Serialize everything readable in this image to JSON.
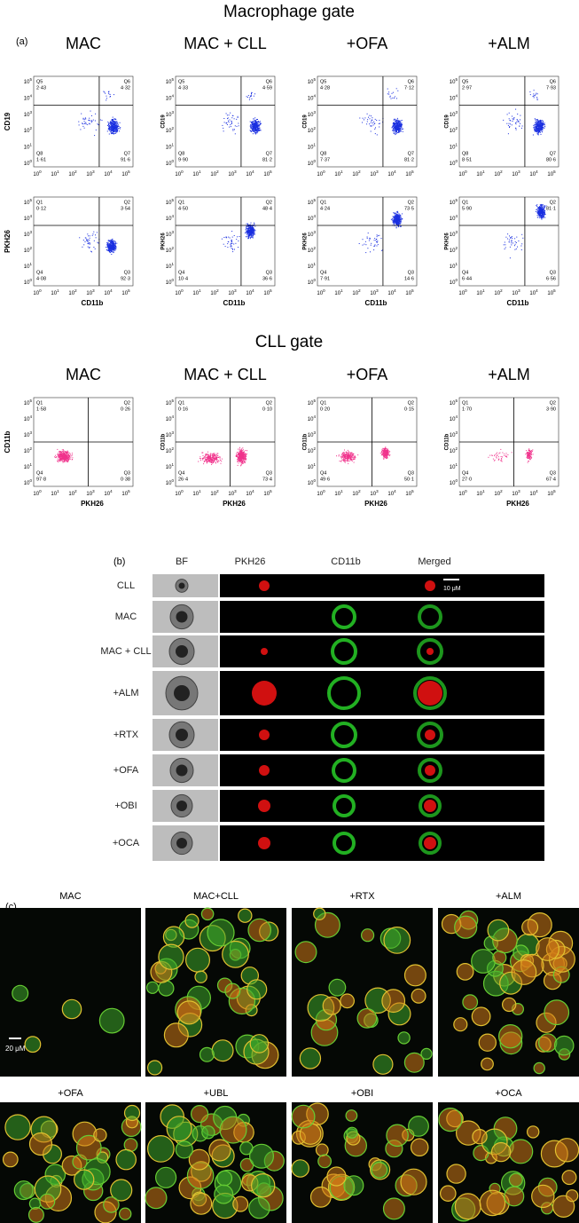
{
  "macrophage_gate": {
    "title": "Macrophage gate",
    "panel_label": "(a)",
    "columns": [
      "MAC",
      "MAC + CLL",
      "+OFA",
      "+ALM"
    ],
    "tick_base": "10",
    "tick_exponents": [
      "0",
      "1",
      "2",
      "3",
      "4",
      "5"
    ],
    "x_label": "CD11b",
    "rows": [
      {
        "y_label": "CD19",
        "quadrants": [
          [
            {
              "name": "Q5",
              "value": "2·43"
            },
            {
              "name": "Q6",
              "value": "4·32"
            },
            {
              "name": "Q8",
              "value": "1·61"
            },
            {
              "name": "Q7",
              "value": "91·6"
            }
          ],
          [
            {
              "name": "Q5",
              "value": "4·33"
            },
            {
              "name": "Q6",
              "value": "4·59"
            },
            {
              "name": "Q8",
              "value": "9·90"
            },
            {
              "name": "Q7",
              "value": "81·2"
            }
          ],
          [
            {
              "name": "Q5",
              "value": "4·28"
            },
            {
              "name": "Q6",
              "value": "7·12"
            },
            {
              "name": "Q8",
              "value": "7·37"
            },
            {
              "name": "Q7",
              "value": "81·2"
            }
          ],
          [
            {
              "name": "Q5",
              "value": "2·97"
            },
            {
              "name": "Q6",
              "value": "7·93"
            },
            {
              "name": "Q8",
              "value": "8·51"
            },
            {
              "name": "Q7",
              "value": "80·6"
            }
          ]
        ]
      },
      {
        "y_label": "PKH26",
        "quadrants": [
          [
            {
              "name": "Q1",
              "value": "0·12"
            },
            {
              "name": "Q2",
              "value": "3·54"
            },
            {
              "name": "Q4",
              "value": "4·08"
            },
            {
              "name": "Q3",
              "value": "92·3"
            }
          ],
          [
            {
              "name": "Q1",
              "value": "4·50"
            },
            {
              "name": "Q2",
              "value": "48·4"
            },
            {
              "name": "Q4",
              "value": "10·4"
            },
            {
              "name": "Q3",
              "value": "36·6"
            }
          ],
          [
            {
              "name": "Q1",
              "value": "4·24"
            },
            {
              "name": "Q2",
              "value": "73·5"
            },
            {
              "name": "Q4",
              "value": "7·91"
            },
            {
              "name": "Q3",
              "value": "14·6"
            }
          ],
          [
            {
              "name": "Q1",
              "value": "5·90"
            },
            {
              "name": "Q2",
              "value": "81·1"
            },
            {
              "name": "Q4",
              "value": "6·44"
            },
            {
              "name": "Q3",
              "value": "6·56"
            }
          ]
        ]
      }
    ]
  },
  "cll_gate": {
    "title": "CLL gate",
    "columns": [
      "MAC",
      "MAC + CLL",
      "+OFA",
      "+ALM"
    ],
    "x_label": "PKH26",
    "rows": [
      {
        "y_label": "CD11b",
        "quadrants": [
          [
            {
              "name": "Q1",
              "value": "1·58"
            },
            {
              "name": "Q2",
              "value": "0·26"
            },
            {
              "name": "Q4",
              "value": "97·8"
            },
            {
              "name": "Q3",
              "value": "0·38"
            }
          ],
          [
            {
              "name": "Q1",
              "value": "0·16"
            },
            {
              "name": "Q2",
              "value": "0·10"
            },
            {
              "name": "Q4",
              "value": "26·4"
            },
            {
              "name": "Q3",
              "value": "73·4"
            }
          ],
          [
            {
              "name": "Q1",
              "value": "0·20"
            },
            {
              "name": "Q2",
              "value": "0·15"
            },
            {
              "name": "Q4",
              "value": "49·6"
            },
            {
              "name": "Q3",
              "value": "50·1"
            }
          ],
          [
            {
              "name": "Q1",
              "value": "1·70"
            },
            {
              "name": "Q2",
              "value": "3·90"
            },
            {
              "name": "Q4",
              "value": "27·0"
            },
            {
              "name": "Q3",
              "value": "67·4"
            }
          ]
        ]
      }
    ]
  },
  "imaging": {
    "panel_label": "(b)",
    "headers": [
      "BF",
      "PKH26",
      "CD11b",
      "Merged"
    ],
    "rows": [
      "CLL",
      "MAC",
      "MAC + CLL",
      "+ALM",
      "+RTX",
      "+OFA",
      "+OBI",
      "+OCA"
    ],
    "scale_bar": "10 μM"
  },
  "confocal": {
    "panel_label": "(c)",
    "panels": [
      "MAC",
      "MAC+CLL",
      "+RTX",
      "+ALM",
      "+OFA",
      "+UBL",
      "+OBI",
      "+OCA"
    ],
    "scale_bar": "20 μM"
  }
}
